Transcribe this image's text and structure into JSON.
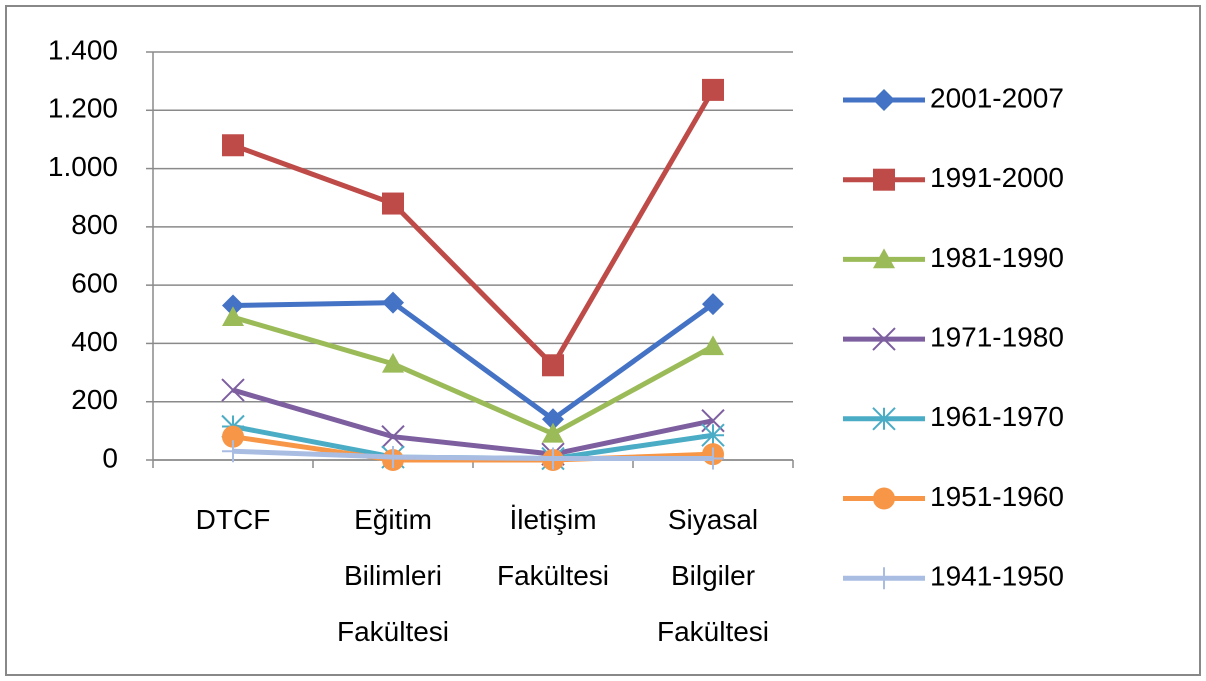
{
  "chart_data": {
    "type": "line",
    "categories": [
      "DTCF",
      "Eğitim Bilimleri Fakültesi",
      "İletişim Fakültesi",
      "Siyasal Bilgiler Fakültesi"
    ],
    "series": [
      {
        "name": "2001-2007",
        "color": "#4472c4",
        "marker": "diamond",
        "values": [
          530,
          540,
          140,
          535
        ]
      },
      {
        "name": "1991-2000",
        "color": "#be4b48",
        "marker": "square",
        "values": [
          1080,
          880,
          325,
          1270
        ]
      },
      {
        "name": "1981-1990",
        "color": "#9bbb59",
        "marker": "triangle",
        "values": [
          490,
          330,
          90,
          390
        ]
      },
      {
        "name": "1971-1980",
        "color": "#7d5fa0",
        "marker": "x",
        "values": [
          240,
          80,
          20,
          135
        ]
      },
      {
        "name": "1961-1970",
        "color": "#4bacc6",
        "marker": "star",
        "values": [
          115,
          10,
          5,
          85
        ]
      },
      {
        "name": "1951-1960",
        "color": "#f79646",
        "marker": "circle",
        "values": [
          80,
          0,
          0,
          20
        ]
      },
      {
        "name": "1941-1950",
        "color": "#a9bde3",
        "marker": "plus",
        "values": [
          30,
          10,
          5,
          5
        ]
      }
    ],
    "ylim": [
      0,
      1400
    ],
    "yticks": [
      0,
      200,
      400,
      600,
      800,
      {
        "value": 1000,
        "label": "1.000"
      },
      {
        "value": 1200,
        "label": "1.200"
      },
      {
        "value": 1400,
        "label": "1.400"
      }
    ],
    "grid": true,
    "legend": "right"
  }
}
